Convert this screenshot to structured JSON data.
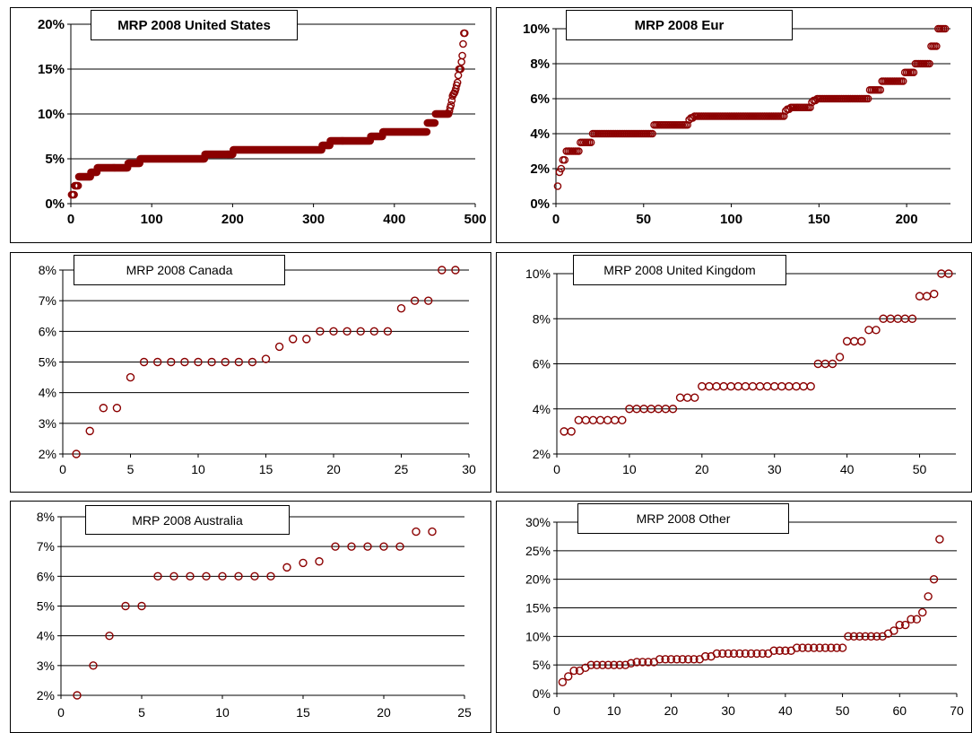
{
  "chart_data": [
    {
      "type": "scatter",
      "title": "MRP 2008 United States",
      "xlim": [
        0,
        500
      ],
      "xticks": [
        0,
        100,
        200,
        300,
        400,
        500
      ],
      "ylim": [
        0,
        20
      ],
      "yticks": [
        0,
        5,
        10,
        15,
        20
      ],
      "ytick_labels": [
        "0%",
        "5%",
        "10%",
        "15%",
        "20%"
      ],
      "grid": "horizontal",
      "marker_color": "#8b0000",
      "x_count": 487,
      "step_profile": [
        [
          0,
          1
        ],
        [
          4,
          1
        ],
        [
          5,
          2
        ],
        [
          9,
          2
        ],
        [
          10,
          3
        ],
        [
          24,
          3
        ],
        [
          25,
          3.5
        ],
        [
          32,
          3.5
        ],
        [
          33,
          4
        ],
        [
          70,
          4
        ],
        [
          71,
          4.5
        ],
        [
          85,
          4.5
        ],
        [
          86,
          5
        ],
        [
          165,
          5
        ],
        [
          166,
          5.5
        ],
        [
          200,
          5.5
        ],
        [
          201,
          6
        ],
        [
          310,
          6
        ],
        [
          311,
          6.5
        ],
        [
          320,
          6.5
        ],
        [
          321,
          7
        ],
        [
          370,
          7
        ],
        [
          371,
          7.5
        ],
        [
          385,
          7.5
        ],
        [
          386,
          8
        ],
        [
          440,
          8
        ],
        [
          441,
          9
        ],
        [
          450,
          9
        ],
        [
          451,
          10
        ],
        [
          467,
          10
        ],
        [
          470,
          11
        ],
        [
          472,
          12
        ],
        [
          475,
          12.5
        ],
        [
          478,
          13.5
        ],
        [
          480,
          15
        ],
        [
          482,
          15
        ],
        [
          484,
          16.5
        ],
        [
          486,
          19
        ]
      ]
    },
    {
      "type": "scatter",
      "title": "MRP 2008 Eur",
      "xlim": [
        0,
        225
      ],
      "xticks": [
        0,
        50,
        100,
        150,
        200
      ],
      "ylim": [
        0,
        10
      ],
      "yticks": [
        0,
        2,
        4,
        6,
        8,
        10
      ],
      "ytick_labels": [
        "0%",
        "2%",
        "4%",
        "6%",
        "8%",
        "10%"
      ],
      "grid": "horizontal",
      "marker_color": "#8b0000",
      "x_count": 222,
      "step_profile": [
        [
          1,
          1
        ],
        [
          2,
          1.8
        ],
        [
          3,
          2
        ],
        [
          4,
          2.5
        ],
        [
          5,
          2.5
        ],
        [
          6,
          3
        ],
        [
          13,
          3
        ],
        [
          14,
          3.5
        ],
        [
          20,
          3.5
        ],
        [
          21,
          4
        ],
        [
          55,
          4
        ],
        [
          56,
          4.5
        ],
        [
          75,
          4.5
        ],
        [
          76,
          4.8
        ],
        [
          80,
          5
        ],
        [
          130,
          5
        ],
        [
          131,
          5.3
        ],
        [
          134,
          5.5
        ],
        [
          145,
          5.5
        ],
        [
          146,
          5.8
        ],
        [
          150,
          6
        ],
        [
          178,
          6
        ],
        [
          179,
          6.5
        ],
        [
          185,
          6.5
        ],
        [
          186,
          7
        ],
        [
          198,
          7
        ],
        [
          199,
          7.5
        ],
        [
          204,
          7.5
        ],
        [
          205,
          8
        ],
        [
          213,
          8
        ],
        [
          214,
          9
        ],
        [
          217,
          9
        ],
        [
          218,
          10
        ],
        [
          222,
          10
        ]
      ]
    },
    {
      "type": "scatter",
      "title": "MRP 2008 Canada",
      "xlim": [
        0,
        30
      ],
      "xticks": [
        0,
        5,
        10,
        15,
        20,
        25,
        30
      ],
      "ylim": [
        2,
        8
      ],
      "yticks": [
        2,
        3,
        4,
        5,
        6,
        7,
        8
      ],
      "ytick_labels": [
        "2%",
        "3%",
        "4%",
        "5%",
        "6%",
        "7%",
        "8%"
      ],
      "grid": "horizontal",
      "marker_color": "#8b0000",
      "x": [
        1,
        2,
        3,
        4,
        5,
        6,
        7,
        8,
        9,
        10,
        11,
        12,
        13,
        14,
        15,
        16,
        17,
        18,
        19,
        20,
        21,
        22,
        23,
        24,
        25,
        26,
        27,
        28,
        29
      ],
      "y": [
        2,
        2.75,
        3.5,
        3.5,
        4.5,
        5,
        5,
        5,
        5,
        5,
        5,
        5,
        5,
        5,
        5.1,
        5.5,
        5.75,
        5.75,
        6,
        6,
        6,
        6,
        6,
        6,
        6.75,
        7,
        7,
        8,
        8
      ]
    },
    {
      "type": "scatter",
      "title": "MRP 2008 United Kingdom",
      "xlim": [
        0,
        55
      ],
      "xticks": [
        0,
        10,
        20,
        30,
        40,
        50
      ],
      "ylim": [
        2,
        10
      ],
      "yticks": [
        2,
        4,
        6,
        8,
        10
      ],
      "ytick_labels": [
        "2%",
        "4%",
        "6%",
        "8%",
        "10%"
      ],
      "grid": "horizontal",
      "marker_color": "#8b0000",
      "x": [
        1,
        2,
        3,
        4,
        5,
        6,
        7,
        8,
        9,
        10,
        11,
        12,
        13,
        14,
        15,
        16,
        17,
        18,
        19,
        20,
        21,
        22,
        23,
        24,
        25,
        26,
        27,
        28,
        29,
        30,
        31,
        32,
        33,
        34,
        35,
        36,
        37,
        38,
        39,
        40,
        41,
        42,
        43,
        44,
        45,
        46,
        47,
        48,
        49,
        50,
        51,
        52,
        53,
        54
      ],
      "y": [
        3,
        3,
        3.5,
        3.5,
        3.5,
        3.5,
        3.5,
        3.5,
        3.5,
        4,
        4,
        4,
        4,
        4,
        4,
        4,
        4.5,
        4.5,
        4.5,
        5,
        5,
        5,
        5,
        5,
        5,
        5,
        5,
        5,
        5,
        5,
        5,
        5,
        5,
        5,
        5,
        6,
        6,
        6,
        6.3,
        7,
        7,
        7,
        7.5,
        7.5,
        8,
        8,
        8,
        8,
        8,
        9,
        9,
        9.1,
        10,
        10
      ]
    },
    {
      "type": "scatter",
      "title": "MRP 2008 Australia",
      "xlim": [
        0,
        25
      ],
      "xticks": [
        0,
        5,
        10,
        15,
        20,
        25
      ],
      "ylim": [
        2,
        8
      ],
      "yticks": [
        2,
        3,
        4,
        5,
        6,
        7,
        8
      ],
      "ytick_labels": [
        "2%",
        "3%",
        "4%",
        "5%",
        "6%",
        "7%",
        "8%"
      ],
      "grid": "horizontal",
      "marker_color": "#8b0000",
      "x": [
        1,
        2,
        3,
        4,
        5,
        6,
        7,
        8,
        9,
        10,
        11,
        12,
        13,
        14,
        15,
        16,
        17,
        18,
        19,
        20,
        21,
        22,
        23
      ],
      "y": [
        2,
        3,
        4,
        5,
        5,
        6,
        6,
        6,
        6,
        6,
        6,
        6,
        6,
        6.3,
        6.45,
        6.5,
        7,
        7,
        7,
        7,
        7,
        7.5,
        7.5
      ]
    },
    {
      "type": "scatter",
      "title": "MRP 2008 Other",
      "xlim": [
        0,
        70
      ],
      "xticks": [
        0,
        10,
        20,
        30,
        40,
        50,
        60,
        70
      ],
      "ylim": [
        0,
        30
      ],
      "yticks": [
        0,
        5,
        10,
        15,
        20,
        25,
        30
      ],
      "ytick_labels": [
        "0%",
        "5%",
        "10%",
        "15%",
        "20%",
        "25%",
        "30%"
      ],
      "grid": "horizontal",
      "marker_color": "#8b0000",
      "x": [
        1,
        2,
        3,
        4,
        5,
        6,
        7,
        8,
        9,
        10,
        11,
        12,
        13,
        14,
        15,
        16,
        17,
        18,
        19,
        20,
        21,
        22,
        23,
        24,
        25,
        26,
        27,
        28,
        29,
        30,
        31,
        32,
        33,
        34,
        35,
        36,
        37,
        38,
        39,
        40,
        41,
        42,
        43,
        44,
        45,
        46,
        47,
        48,
        49,
        50,
        51,
        52,
        53,
        54,
        55,
        56,
        57,
        58,
        59,
        60,
        61,
        62,
        63,
        64,
        65,
        66,
        67
      ],
      "y": [
        2,
        3,
        4,
        4,
        4.5,
        5,
        5,
        5,
        5,
        5,
        5,
        5,
        5.3,
        5.5,
        5.5,
        5.5,
        5.5,
        6,
        6,
        6,
        6,
        6,
        6,
        6,
        6,
        6.5,
        6.5,
        7,
        7,
        7,
        7,
        7,
        7,
        7,
        7,
        7,
        7,
        7.5,
        7.5,
        7.5,
        7.5,
        8,
        8,
        8,
        8,
        8,
        8,
        8,
        8,
        8,
        10,
        10,
        10,
        10,
        10,
        10,
        10,
        10.5,
        11,
        12,
        12,
        13,
        13,
        14.2,
        17,
        20,
        27
      ]
    }
  ]
}
